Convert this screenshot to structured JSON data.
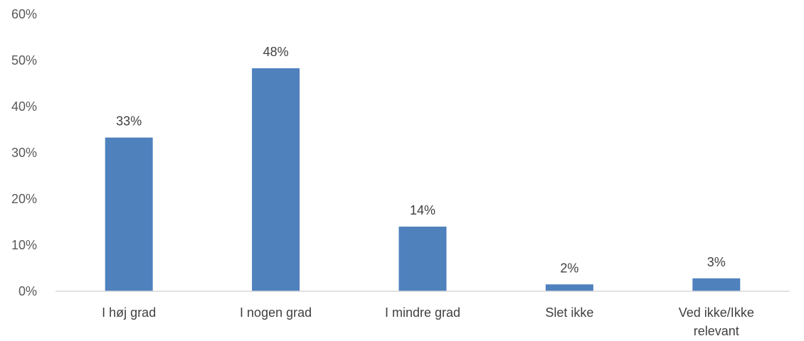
{
  "chart_data": {
    "type": "bar",
    "categories": [
      [
        "I høj grad"
      ],
      [
        "I nogen grad"
      ],
      [
        "I mindre grad"
      ],
      [
        "Slet ikke"
      ],
      [
        "Ved ikke/Ikke",
        "relevant"
      ]
    ],
    "values": [
      33.3,
      48.3,
      14.0,
      1.5,
      2.8
    ],
    "data_labels": [
      "33%",
      "48%",
      "14%",
      "2%",
      "3%"
    ],
    "y_ticks": [
      0,
      10,
      20,
      30,
      40,
      50,
      60
    ],
    "y_tick_labels": [
      "0%",
      "10%",
      "20%",
      "30%",
      "40%",
      "50%",
      "60%"
    ],
    "ylim": [
      0,
      60
    ],
    "grid": false,
    "legend": "none",
    "title": "",
    "xlabel": "",
    "ylabel": "",
    "bar_color": "#4f81bd",
    "axis_color": "#d9d9d9"
  }
}
